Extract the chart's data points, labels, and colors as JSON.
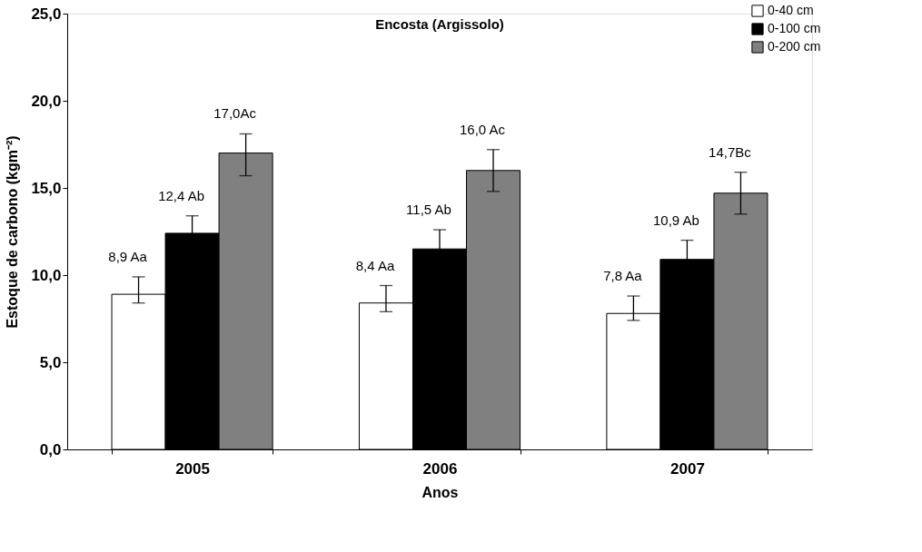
{
  "chart_data": {
    "type": "bar",
    "title": "Encosta (Argissolo)",
    "xlabel": "Anos",
    "ylabel": "Estoque de carbono (kgm⁻²)",
    "categories": [
      "2005",
      "2006",
      "2007"
    ],
    "series": [
      {
        "name": "0-40 cm",
        "color": "#ffffff",
        "values": [
          8.9,
          8.4,
          7.8
        ],
        "errors": [
          [
            8.4,
            9.9
          ],
          [
            7.9,
            9.4
          ],
          [
            7.4,
            8.8
          ]
        ],
        "value_labels": [
          "8,9 Aa",
          "8,4 Aa",
          "7,8 Aa"
        ]
      },
      {
        "name": "0-100 cm",
        "color": "#000000",
        "values": [
          12.4,
          11.5,
          10.9
        ],
        "errors": [
          1.0,
          1.1,
          1.1
        ],
        "value_labels": [
          "12,4 Ab",
          "11,5 Ab",
          "10,9 Ab"
        ]
      },
      {
        "name": "0-200 cm",
        "color": "#808080",
        "values": [
          17.0,
          16.0,
          14.7
        ],
        "errors": [
          [
            15.7,
            18.1
          ],
          [
            14.8,
            17.2
          ],
          [
            13.5,
            15.9
          ]
        ],
        "value_labels": [
          "17,0Ac",
          "16,0 Ac",
          "14,7Bc"
        ]
      }
    ],
    "ylim": [
      0,
      25
    ],
    "yticks": [
      {
        "value": 0,
        "label": "0,0"
      },
      {
        "value": 5,
        "label": "5,0"
      },
      {
        "value": 10,
        "label": "10,0"
      },
      {
        "value": 15,
        "label": "15,0"
      },
      {
        "value": 20,
        "label": "20,0"
      },
      {
        "value": 25,
        "label": "25,0"
      }
    ],
    "grid": false,
    "legend": "top right"
  }
}
